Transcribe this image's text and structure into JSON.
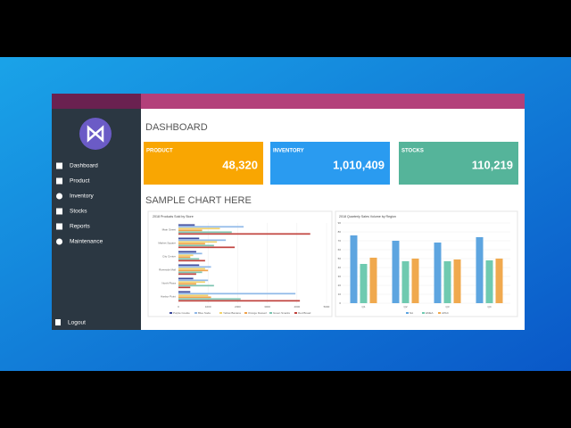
{
  "sidebar": {
    "menu": [
      "Dashboard",
      "Product",
      "Inventory",
      "Stocks",
      "Reports",
      "Maintenance"
    ],
    "logout": "Logout"
  },
  "header": {
    "title": "DASHBOARD"
  },
  "cards": [
    {
      "label": "PRODUCT",
      "value": "48,320",
      "color": "#f9a602"
    },
    {
      "label": "INVENTORY",
      "value": "1,010,409",
      "color": "#2a9bf0"
    },
    {
      "label": "STOCKS",
      "value": "110,219",
      "color": "#55b49a"
    }
  ],
  "section_title": "SAMPLE CHART HERE",
  "charts": [
    {
      "type": "hbar",
      "title": "2018 Products Sold by Store",
      "categories": [
        "Main Street",
        "Market Square",
        "City Center",
        "Riverside Mall",
        "North Plaza",
        "Harbor Point"
      ],
      "series": [
        {
          "name": "Purple Cookie",
          "color": "#3d4a9c",
          "values": [
            550,
            700,
            600,
            700,
            500,
            400
          ]
        },
        {
          "name": "Blue Soda",
          "color": "#8fb8e8",
          "values": [
            2200,
            1600,
            800,
            1100,
            1000,
            3950
          ]
        },
        {
          "name": "Yellow Banana",
          "color": "#f3d36b",
          "values": [
            1400,
            1300,
            500,
            900,
            900,
            1000
          ]
        },
        {
          "name": "Orange Dessert",
          "color": "#f0a24a",
          "values": [
            800,
            900,
            400,
            1000,
            600,
            1100
          ]
        },
        {
          "name": "Green Snacks",
          "color": "#7cc4b0",
          "values": [
            1800,
            1200,
            700,
            800,
            1200,
            2100
          ]
        },
        {
          "name": "Red Bread",
          "color": "#c0413c",
          "values": [
            4450,
            1900,
            900,
            600,
            400,
            4100
          ]
        }
      ],
      "xlim": [
        0,
        5000
      ],
      "xticks": [
        0,
        1000,
        2000,
        3000,
        4000,
        5000
      ]
    },
    {
      "type": "bar",
      "title": "2018 Quarterly Sales Volume by Region",
      "categories": [
        "Q1",
        "Q2",
        "Q3",
        "Q4"
      ],
      "series": [
        {
          "name": "NA",
          "color": "#5da5e0",
          "values": [
            76,
            70,
            68,
            74
          ]
        },
        {
          "name": "EMEA",
          "color": "#6fcab0",
          "values": [
            44,
            47,
            47,
            48
          ]
        },
        {
          "name": "APAC",
          "color": "#f0a94e",
          "values": [
            51,
            50,
            49,
            50
          ]
        }
      ],
      "ylim": [
        0,
        90
      ],
      "yticks": [
        0,
        10,
        20,
        30,
        40,
        50,
        60,
        70,
        80,
        90
      ]
    }
  ]
}
